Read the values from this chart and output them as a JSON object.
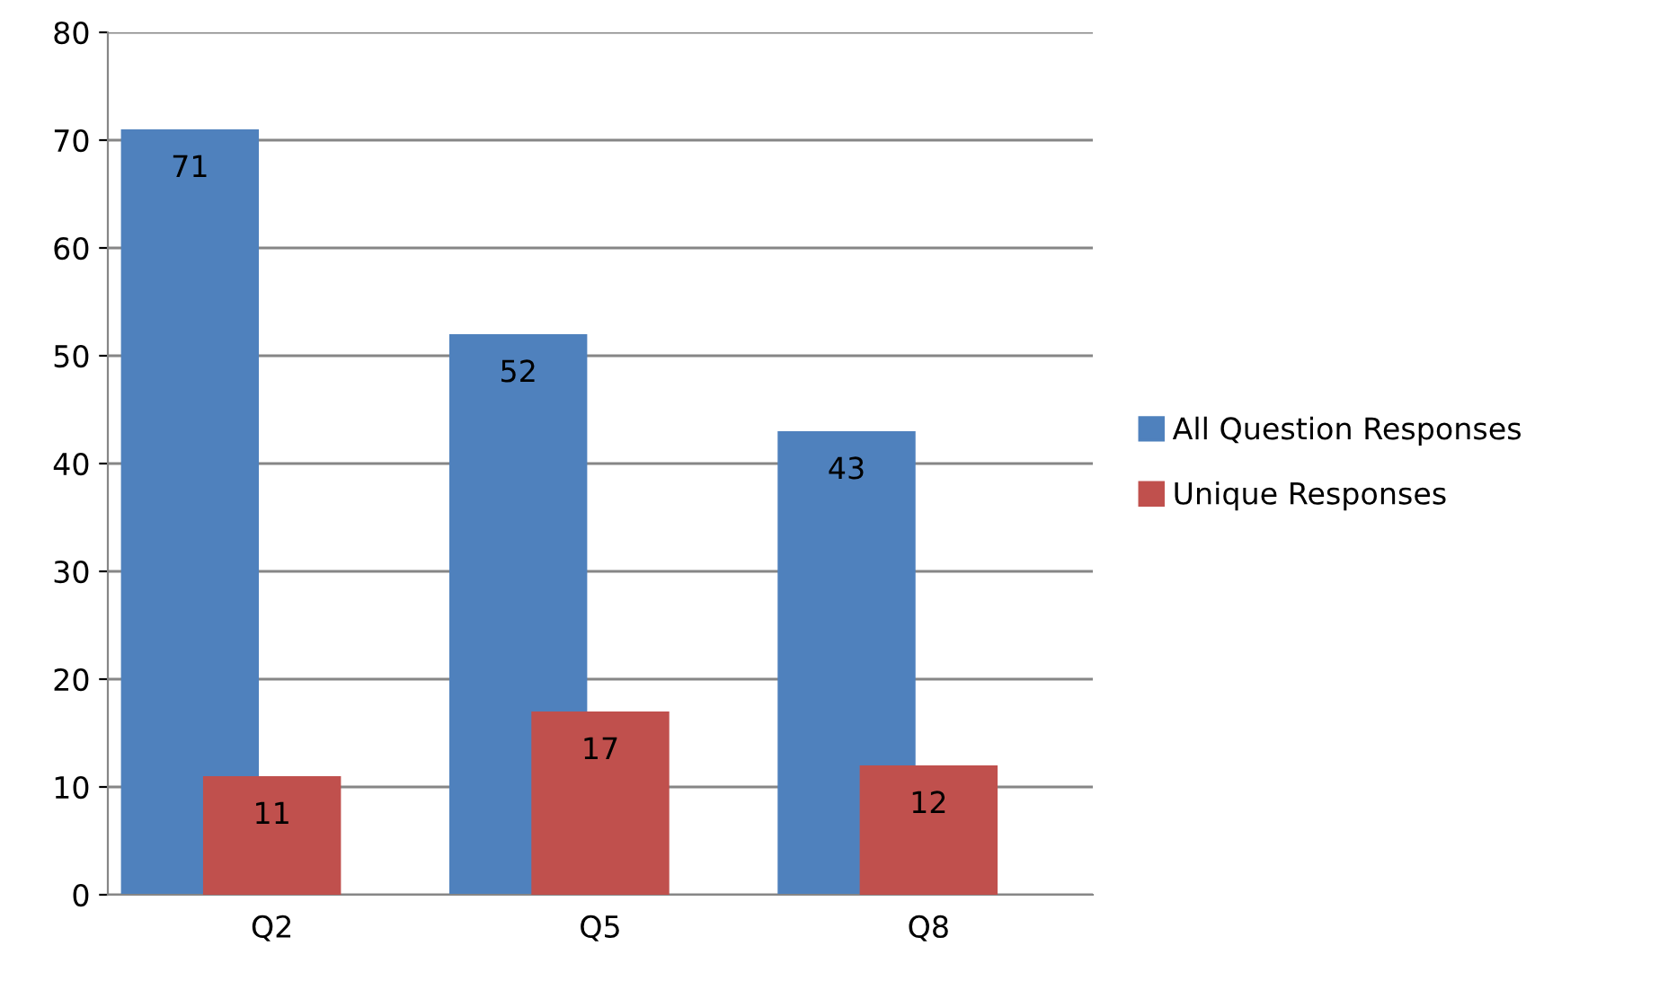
{
  "chart_data": {
    "type": "bar",
    "categories": [
      "Q2",
      "Q5",
      "Q8"
    ],
    "series": [
      {
        "name": "All Question Responses",
        "color": "#4f81bd",
        "values": [
          71,
          52,
          43
        ]
      },
      {
        "name": "Unique Responses",
        "color": "#c0504d",
        "values": [
          11,
          17,
          12
        ]
      }
    ],
    "ylim": [
      0,
      80
    ],
    "yticks": [
      0,
      10,
      20,
      30,
      40,
      50,
      60,
      70,
      80
    ],
    "grid": "y",
    "legend": "right",
    "data_labels": true
  }
}
